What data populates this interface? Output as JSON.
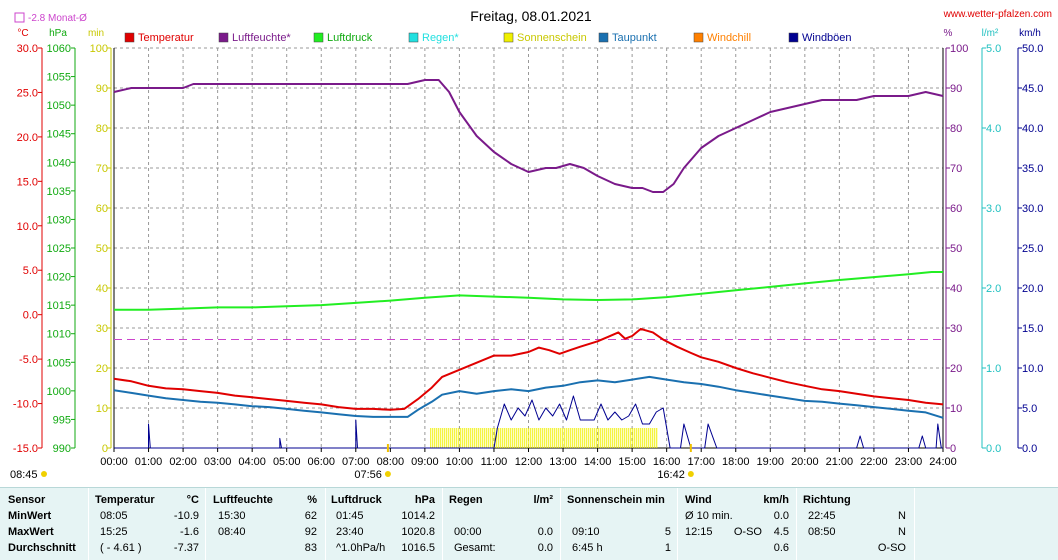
{
  "header": {
    "title": "Freitag, 08.01.2021",
    "site": "www.wetter-pfalzen.com",
    "monat_label": "-2.8 Monat-Ø"
  },
  "colors": {
    "temperature": "#e00000",
    "humidity": "#7a1a8a",
    "pressure": "#22ee22",
    "rain": "#22e0e0",
    "sunshine": "#f0f000",
    "dewpoint": "#1a70b0",
    "windchill": "#ff8000",
    "gusts": "#000090",
    "monthavg": "#cc44cc"
  },
  "chart_data": {
    "type": "line",
    "title": "Freitag, 08.01.2021",
    "x_unit": "hours",
    "xlim": [
      0,
      24
    ],
    "x_ticks": [
      "00:00",
      "01:00",
      "02:00",
      "03:00",
      "04:00",
      "05:00",
      "06:00",
      "07:00",
      "08:00",
      "09:00",
      "10:00",
      "11:00",
      "12:00",
      "13:00",
      "14:00",
      "15:00",
      "16:00",
      "17:00",
      "18:00",
      "19:00",
      "20:00",
      "21:00",
      "22:00",
      "23:00",
      "24:00"
    ],
    "legend": [
      "Temperatur",
      "Luftfeuchte*",
      "Luftdruck",
      "Regen*",
      "Sonnenschein",
      "Taupunkt",
      "Windchill",
      "Windböen"
    ],
    "axes": {
      "temp": {
        "unit": "°C",
        "range": [
          -15,
          30
        ],
        "ticks": [
          "30.0",
          "25.0",
          "20.0",
          "15.0",
          "10.0",
          "5.0",
          "0.0",
          "-5.0",
          "-10.0",
          "-15.0"
        ]
      },
      "pressure": {
        "unit": "hPa",
        "range": [
          990,
          1060
        ],
        "ticks": [
          "1060",
          "1055",
          "1050",
          "1045",
          "1040",
          "1035",
          "1030",
          "1025",
          "1020",
          "1015",
          "1010",
          "1005",
          "1000",
          "995",
          "990"
        ]
      },
      "sun_min": {
        "unit": "min",
        "range": [
          0,
          100
        ],
        "ticks": [
          "100",
          "90",
          "80",
          "70",
          "60",
          "50",
          "40",
          "30",
          "20",
          "10",
          "0"
        ]
      },
      "humidity": {
        "unit": "%",
        "range": [
          0,
          100
        ],
        "ticks": [
          "100",
          "90",
          "80",
          "70",
          "60",
          "50",
          "40",
          "30",
          "20",
          "10",
          "0"
        ]
      },
      "rain": {
        "unit": "l/m²",
        "range": [
          0,
          5
        ],
        "ticks": [
          "5.0",
          "4.0",
          "3.0",
          "2.0",
          "1.0",
          "0.0"
        ]
      },
      "wind": {
        "unit": "km/h",
        "range": [
          0,
          50
        ],
        "ticks": [
          "50.0",
          "45.0",
          "40.0",
          "35.0",
          "30.0",
          "25.0",
          "20.0",
          "15.0",
          "10.0",
          "5.0",
          "0.0"
        ]
      }
    },
    "month_avg_temp": -2.8,
    "sunrise": "07:56",
    "sunset": "16:42",
    "sunrise_h": 7.93,
    "sunset_h": 16.7,
    "sunshine_period": [
      9.17,
      15.75
    ],
    "sunshine_level_min": 5,
    "series": [
      {
        "name": "Temperatur",
        "axis": "temp",
        "color": "#e00000",
        "points": [
          [
            0,
            -7.2
          ],
          [
            0.5,
            -7.5
          ],
          [
            1,
            -8.0
          ],
          [
            1.5,
            -8.3
          ],
          [
            2,
            -8.4
          ],
          [
            2.5,
            -8.6
          ],
          [
            3,
            -8.8
          ],
          [
            3.5,
            -9.1
          ],
          [
            4,
            -9.3
          ],
          [
            4.5,
            -9.5
          ],
          [
            5,
            -9.7
          ],
          [
            5.5,
            -9.9
          ],
          [
            6,
            -10.1
          ],
          [
            6.5,
            -10.4
          ],
          [
            7,
            -10.6
          ],
          [
            7.5,
            -10.6
          ],
          [
            8,
            -10.7
          ],
          [
            8.4,
            -10.6
          ],
          [
            8.8,
            -9.5
          ],
          [
            9.2,
            -8.2
          ],
          [
            9.5,
            -7.0
          ],
          [
            10,
            -6.2
          ],
          [
            10.5,
            -5.4
          ],
          [
            11,
            -4.6
          ],
          [
            11.5,
            -4.6
          ],
          [
            12,
            -4.2
          ],
          [
            12.3,
            -3.7
          ],
          [
            12.6,
            -4.0
          ],
          [
            12.9,
            -4.4
          ],
          [
            13.2,
            -4.0
          ],
          [
            13.5,
            -3.6
          ],
          [
            14,
            -3.0
          ],
          [
            14.3,
            -2.5
          ],
          [
            14.6,
            -2.0
          ],
          [
            14.8,
            -2.7
          ],
          [
            15,
            -2.4
          ],
          [
            15.25,
            -1.6
          ],
          [
            15.6,
            -2.0
          ],
          [
            15.9,
            -2.8
          ],
          [
            16.3,
            -3.6
          ],
          [
            16.7,
            -4.3
          ],
          [
            17,
            -4.8
          ],
          [
            17.5,
            -5.3
          ],
          [
            18,
            -6.0
          ],
          [
            18.5,
            -6.6
          ],
          [
            19,
            -7.1
          ],
          [
            19.5,
            -7.6
          ],
          [
            20,
            -8.0
          ],
          [
            20.5,
            -8.4
          ],
          [
            21,
            -8.6
          ],
          [
            21.5,
            -8.9
          ],
          [
            22,
            -9.2
          ],
          [
            22.5,
            -9.4
          ],
          [
            23,
            -9.6
          ],
          [
            23.5,
            -9.9
          ],
          [
            24,
            -10.1
          ]
        ]
      },
      {
        "name": "Taupunkt",
        "axis": "temp",
        "color": "#1a70b0",
        "points": [
          [
            0,
            -8.5
          ],
          [
            0.5,
            -8.8
          ],
          [
            1,
            -9.1
          ],
          [
            1.5,
            -9.4
          ],
          [
            2,
            -9.6
          ],
          [
            2.5,
            -9.8
          ],
          [
            3,
            -9.9
          ],
          [
            3.5,
            -10.1
          ],
          [
            4,
            -10.3
          ],
          [
            4.5,
            -10.4
          ],
          [
            5,
            -10.6
          ],
          [
            5.5,
            -10.8
          ],
          [
            6,
            -11.0
          ],
          [
            6.5,
            -11.2
          ],
          [
            7,
            -11.4
          ],
          [
            7.5,
            -11.5
          ],
          [
            8,
            -11.5
          ],
          [
            8.5,
            -11.5
          ],
          [
            8.8,
            -10.7
          ],
          [
            9.2,
            -9.8
          ],
          [
            9.5,
            -9.0
          ],
          [
            10,
            -8.6
          ],
          [
            10.5,
            -8.9
          ],
          [
            11,
            -8.6
          ],
          [
            11.5,
            -8.4
          ],
          [
            12,
            -8.6
          ],
          [
            12.5,
            -8.2
          ],
          [
            13,
            -8.0
          ],
          [
            13.5,
            -7.6
          ],
          [
            14,
            -7.4
          ],
          [
            14.5,
            -7.6
          ],
          [
            15,
            -7.3
          ],
          [
            15.5,
            -7.0
          ],
          [
            16,
            -7.3
          ],
          [
            16.5,
            -7.6
          ],
          [
            17,
            -7.8
          ],
          [
            17.5,
            -8.1
          ],
          [
            18,
            -8.5
          ],
          [
            18.5,
            -8.8
          ],
          [
            19,
            -9.1
          ],
          [
            19.5,
            -9.4
          ],
          [
            20,
            -9.7
          ],
          [
            20.5,
            -9.8
          ],
          [
            21,
            -10.0
          ],
          [
            21.5,
            -10.2
          ],
          [
            22,
            -10.4
          ],
          [
            22.5,
            -10.6
          ],
          [
            23,
            -10.8
          ],
          [
            23.5,
            -11.0
          ],
          [
            24,
            -11.6
          ]
        ]
      },
      {
        "name": "Luftfeuchte*",
        "axis": "humidity",
        "color": "#7a1a8a",
        "points": [
          [
            0,
            89
          ],
          [
            0.5,
            90
          ],
          [
            1,
            90
          ],
          [
            2,
            90
          ],
          [
            2.3,
            91
          ],
          [
            3,
            91
          ],
          [
            4,
            91
          ],
          [
            5,
            91
          ],
          [
            6,
            91
          ],
          [
            7,
            91
          ],
          [
            8,
            91
          ],
          [
            8.5,
            91
          ],
          [
            9,
            92
          ],
          [
            9.4,
            92
          ],
          [
            9.7,
            89
          ],
          [
            10,
            84
          ],
          [
            10.5,
            78
          ],
          [
            11,
            74
          ],
          [
            11.5,
            71
          ],
          [
            12,
            69
          ],
          [
            12.5,
            70
          ],
          [
            12.8,
            70
          ],
          [
            13.2,
            71
          ],
          [
            13.6,
            70
          ],
          [
            14,
            68
          ],
          [
            14.5,
            66
          ],
          [
            15,
            65
          ],
          [
            15.3,
            65
          ],
          [
            15.6,
            64
          ],
          [
            15.9,
            64
          ],
          [
            16.2,
            66
          ],
          [
            16.5,
            70
          ],
          [
            17,
            75
          ],
          [
            17.5,
            78
          ],
          [
            18,
            80
          ],
          [
            18.5,
            82
          ],
          [
            19,
            84
          ],
          [
            19.5,
            85
          ],
          [
            20,
            86
          ],
          [
            20.5,
            87
          ],
          [
            21,
            87
          ],
          [
            21.5,
            87
          ],
          [
            22,
            88
          ],
          [
            22.5,
            88
          ],
          [
            23,
            88
          ],
          [
            23.5,
            89
          ],
          [
            24,
            88
          ]
        ]
      },
      {
        "name": "Luftdruck",
        "axis": "pressure",
        "color": "#22ee22",
        "points": [
          [
            0,
            1014.2
          ],
          [
            1,
            1014.2
          ],
          [
            2,
            1014.4
          ],
          [
            3,
            1014.6
          ],
          [
            4,
            1014.6
          ],
          [
            5,
            1014.8
          ],
          [
            6,
            1015.0
          ],
          [
            7,
            1015.4
          ],
          [
            8,
            1015.8
          ],
          [
            9,
            1016.3
          ],
          [
            10,
            1016.7
          ],
          [
            11,
            1016.5
          ],
          [
            12,
            1016.3
          ],
          [
            13,
            1016.0
          ],
          [
            14,
            1015.9
          ],
          [
            15,
            1016.0
          ],
          [
            16,
            1016.4
          ],
          [
            17,
            1017.0
          ],
          [
            18,
            1017.6
          ],
          [
            19,
            1018.2
          ],
          [
            20,
            1018.8
          ],
          [
            21,
            1019.4
          ],
          [
            22,
            1019.9
          ],
          [
            23,
            1020.4
          ],
          [
            23.67,
            1020.8
          ],
          [
            24,
            1020.8
          ]
        ]
      },
      {
        "name": "Windböen",
        "axis": "wind",
        "color": "#000090",
        "points": [
          [
            0,
            0
          ],
          [
            1,
            0
          ],
          [
            1,
            3
          ],
          [
            1.05,
            0
          ],
          [
            4.8,
            0
          ],
          [
            4.8,
            1.2
          ],
          [
            4.85,
            0
          ],
          [
            7,
            0
          ],
          [
            7,
            3.5
          ],
          [
            7.05,
            0
          ],
          [
            11,
            0
          ],
          [
            11.1,
            2.5
          ],
          [
            11.3,
            5.5
          ],
          [
            11.5,
            3.5
          ],
          [
            11.7,
            5
          ],
          [
            11.9,
            4
          ],
          [
            12.1,
            6
          ],
          [
            12.3,
            3.5
          ],
          [
            12.5,
            5
          ],
          [
            12.7,
            4
          ],
          [
            12.9,
            5.5
          ],
          [
            13.1,
            3.5
          ],
          [
            13.3,
            6.5
          ],
          [
            13.5,
            3.5
          ],
          [
            13.7,
            3.5
          ],
          [
            13.9,
            3.5
          ],
          [
            14.1,
            5.5
          ],
          [
            14.3,
            3.5
          ],
          [
            14.5,
            4.5
          ],
          [
            14.7,
            3.5
          ],
          [
            14.9,
            4
          ],
          [
            15.1,
            5.5
          ],
          [
            15.3,
            3
          ],
          [
            15.5,
            3
          ],
          [
            15.7,
            4.5
          ],
          [
            15.9,
            5
          ],
          [
            16.1,
            0
          ],
          [
            16.4,
            0
          ],
          [
            16.5,
            3
          ],
          [
            16.7,
            0
          ],
          [
            17.1,
            0
          ],
          [
            17.2,
            3
          ],
          [
            17.35,
            1.2
          ],
          [
            17.45,
            0
          ],
          [
            21.5,
            0
          ],
          [
            21.6,
            1.5
          ],
          [
            21.7,
            0
          ],
          [
            23.3,
            0
          ],
          [
            23.4,
            1.5
          ],
          [
            23.5,
            0
          ],
          [
            23.8,
            0
          ],
          [
            23.85,
            3
          ],
          [
            23.95,
            0
          ],
          [
            24,
            0
          ]
        ]
      }
    ]
  },
  "stats": {
    "headers": {
      "sensor": "Sensor",
      "temp": "Temperatur",
      "temp_unit": "°C",
      "hum": "Luftfeuchte",
      "hum_unit": "%",
      "press": "Luftdruck",
      "press_unit": "hPa",
      "rain": "Regen",
      "rain_unit": "l/m²",
      "sun": "Sonnenschein min",
      "wind": "Wind",
      "wind_unit": "km/h",
      "dir": "Richtung"
    },
    "rows": [
      {
        "label": "MinWert",
        "temp_time": "08:05",
        "temp_val": "-10.9",
        "hum_time": "15:30",
        "hum_val": "62",
        "press_time": "01:45",
        "press_val": "1014.2",
        "rain_time": "",
        "rain_val": "",
        "sun_time": "",
        "sun_val": "",
        "wind_time": "Ø 10 min.",
        "wind_dir": "",
        "wind_val": "0.0",
        "dir_time": "22:45",
        "dir_val": "N"
      },
      {
        "label": "MaxWert",
        "temp_time": "15:25",
        "temp_val": "-1.6",
        "hum_time": "08:40",
        "hum_val": "92",
        "press_time": "23:40",
        "press_val": "1020.8",
        "rain_time": "00:00",
        "rain_val": "0.0",
        "sun_time": "09:10",
        "sun_val": "5",
        "wind_time": "12:15",
        "wind_dir": "O-SO",
        "wind_val": "4.5",
        "dir_time": "08:50",
        "dir_val": "N"
      },
      {
        "label": "Durchschnitt",
        "temp_time": "( - 4.61 )",
        "temp_val": "-7.37",
        "hum_time": "",
        "hum_val": "83",
        "press_time": "^1.0hPa/h",
        "press_val": "1016.5",
        "rain_time": "Gesamt:",
        "rain_val": "0.0",
        "sun_time": "6:45 h",
        "sun_val": "1",
        "wind_time": "",
        "wind_dir": "",
        "wind_val": "0.6",
        "dir_time": "",
        "dir_val": "O-SO"
      }
    ]
  }
}
